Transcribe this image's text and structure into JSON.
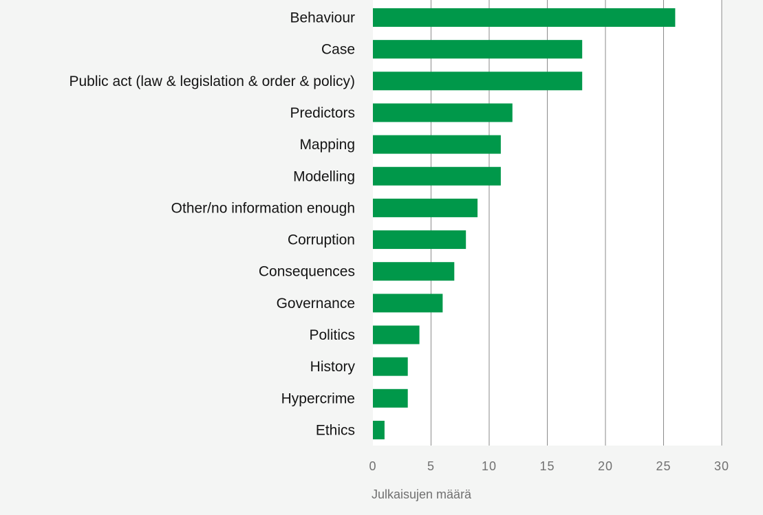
{
  "chart_data": {
    "type": "bar",
    "orientation": "horizontal",
    "categories": [
      "Behaviour",
      "Case",
      "Public act (law & legislation & order & policy)",
      "Predictors",
      "Mapping",
      "Modelling",
      "Other/no information enough",
      "Corruption",
      "Consequences",
      "Governance",
      "Politics",
      "History",
      "Hypercrime",
      "Ethics"
    ],
    "values": [
      26,
      18,
      18,
      12,
      11,
      11,
      9,
      8,
      7,
      6,
      4,
      3,
      3,
      1
    ],
    "xlabel": "Julkaisujen määrä",
    "xlim": [
      0,
      30
    ],
    "xticks": [
      0,
      5,
      10,
      15,
      20,
      25,
      30
    ],
    "grid": "vertical",
    "legend": "none",
    "colors": {
      "bar": "#00984a",
      "plot_background": "#ffffff",
      "page_background": "#f4f5f4",
      "gridline": "#8a8a8a"
    }
  }
}
